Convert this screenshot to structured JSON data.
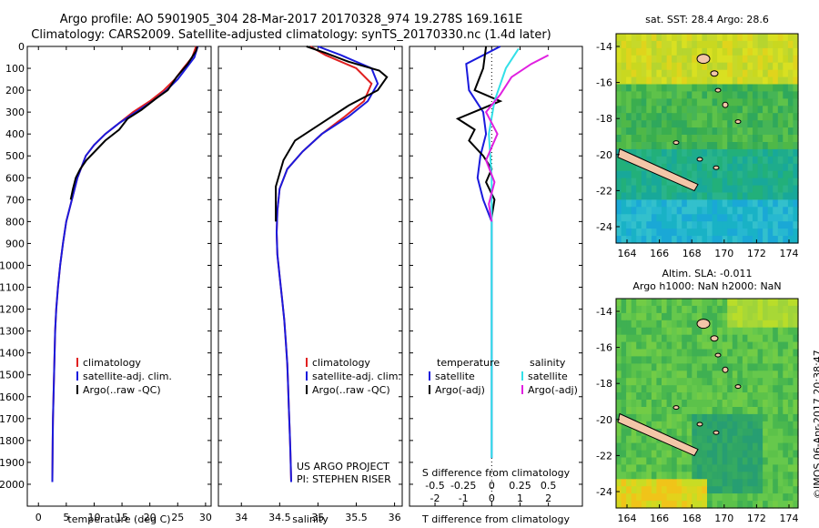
{
  "header": {
    "line1": "Argo profile: AO 5901905_304 28-Mar-2017 20170328_974 19.278S 169.161E",
    "line2": "Climatology: CARS2009. Satellite-adjusted climatology: synTS_20170330.nc (1.4d later)"
  },
  "credit": "©IMOS 06-Apr-2017 20:38:47",
  "colors": {
    "climatology": "#e02020",
    "satellite": "#1a1add",
    "argo": "#000000",
    "sat_salinity": "#33e0e8",
    "argo_salinity": "#e020e0"
  },
  "chart_data": [
    {
      "type": "line",
      "xlabel": "temperature (deg C)",
      "ylabel": "",
      "xlim": [
        -2,
        31
      ],
      "ylim": [
        2100,
        0
      ],
      "xticks": [
        0,
        5,
        10,
        15,
        20,
        25,
        30
      ],
      "yticks": [
        0,
        100,
        200,
        300,
        400,
        500,
        600,
        700,
        800,
        900,
        1000,
        1100,
        1200,
        1300,
        1400,
        1500,
        1600,
        1700,
        1800,
        1900,
        2000
      ],
      "legend": [
        "climatology",
        "satellite-adj. clim.",
        "Argo(..raw -QC)"
      ],
      "series": [
        {
          "name": "climatology",
          "color": "#e02020",
          "x": [
            28.3,
            27.6,
            26,
            24.5,
            22.5,
            20,
            17,
            14.5,
            12,
            10,
            8.5,
            7,
            6,
            5,
            4.4,
            3.9,
            3.5,
            3.2,
            3,
            2.9,
            2.8,
            2.7,
            2.6,
            2.55,
            2.5
          ],
          "y": [
            0,
            50,
            100,
            150,
            200,
            250,
            300,
            350,
            400,
            450,
            500,
            600,
            700,
            800,
            900,
            1000,
            1100,
            1200,
            1300,
            1400,
            1500,
            1600,
            1700,
            1800,
            1990
          ]
        },
        {
          "name": "satellite-adj. clim.",
          "color": "#1a1add",
          "x": [
            28.6,
            28,
            26.5,
            25,
            23,
            20.5,
            17.5,
            14.5,
            12,
            10,
            8.5,
            7,
            6,
            5,
            4.4,
            3.9,
            3.5,
            3.2,
            3,
            2.9,
            2.8,
            2.7,
            2.6,
            2.55,
            2.5
          ],
          "y": [
            0,
            50,
            100,
            150,
            200,
            250,
            300,
            350,
            400,
            450,
            500,
            600,
            700,
            800,
            900,
            1000,
            1100,
            1200,
            1300,
            1400,
            1500,
            1600,
            1700,
            1800,
            1990
          ]
        },
        {
          "name": "Argo(..raw -QC)",
          "color": "#000000",
          "x": [
            28.5,
            28.3,
            26.8,
            24.8,
            23.2,
            21,
            18.5,
            16,
            14.5,
            12,
            10.5,
            8.6,
            7.5,
            6.7,
            6.2,
            5.8
          ],
          "y": [
            0,
            20,
            80,
            140,
            200,
            240,
            290,
            330,
            380,
            430,
            470,
            520,
            560,
            600,
            650,
            700
          ]
        }
      ]
    },
    {
      "type": "line",
      "xlabel": "salinity",
      "ylabel": "",
      "xlim": [
        33.7,
        36.1
      ],
      "ylim": [
        2100,
        0
      ],
      "xticks": [
        34,
        34.5,
        35,
        35.5,
        36
      ],
      "xtick_labels": [
        "34",
        "34.5",
        "35",
        "35.5",
        "36"
      ],
      "legend": [
        "climatology",
        "satellite-adj. clim.",
        "Argo(..raw -QC)"
      ],
      "annotations": [
        "US ARGO PROJECT",
        "PI: STEPHEN RISER"
      ],
      "series": [
        {
          "name": "climatology",
          "color": "#e02020",
          "x": [
            34.9,
            35.1,
            35.5,
            35.7,
            35.6,
            35.35,
            35.05,
            34.8,
            34.6,
            34.5,
            34.47,
            34.46,
            34.47,
            34.5,
            34.53,
            34.56,
            34.58,
            34.6,
            34.61,
            34.62,
            34.63,
            34.64,
            34.65
          ],
          "y": [
            0,
            40,
            100,
            170,
            250,
            320,
            400,
            480,
            560,
            650,
            750,
            850,
            950,
            1050,
            1150,
            1250,
            1350,
            1450,
            1550,
            1650,
            1750,
            1850,
            1990
          ]
        },
        {
          "name": "satellite-adj. clim.",
          "color": "#1a1add",
          "x": [
            35,
            35.3,
            35.7,
            35.78,
            35.65,
            35.4,
            35.05,
            34.8,
            34.6,
            34.5,
            34.47,
            34.46,
            34.47,
            34.5,
            34.53,
            34.56,
            34.58,
            34.6,
            34.61,
            34.62,
            34.63,
            34.64,
            34.65
          ],
          "y": [
            0,
            40,
            100,
            170,
            250,
            320,
            400,
            480,
            560,
            650,
            750,
            850,
            950,
            1050,
            1150,
            1250,
            1350,
            1450,
            1550,
            1650,
            1750,
            1850,
            1990
          ]
        },
        {
          "name": "Argo(..raw -QC)",
          "color": "#000000",
          "x": [
            34.85,
            35.1,
            35.4,
            35.8,
            35.9,
            35.78,
            35.4,
            35.05,
            34.7,
            34.55,
            34.45,
            34.45
          ],
          "y": [
            0,
            30,
            70,
            110,
            140,
            200,
            270,
            350,
            430,
            520,
            640,
            800
          ]
        }
      ]
    },
    {
      "type": "line",
      "xlabel": "T difference from climatology",
      "xlabel2": "S difference from climatology",
      "ylabel": "",
      "xlim": [
        -2.9,
        3.2
      ],
      "ylim": [
        2100,
        0
      ],
      "xticks": [
        -2,
        -1,
        0,
        1,
        2
      ],
      "xticks2": [
        -0.5,
        -0.25,
        0,
        0.25,
        0.5
      ],
      "xtick2_labels": [
        "-0.5",
        "-0.25",
        "0",
        "0.25",
        "0.5"
      ],
      "legend": [
        "temperature",
        "satellite",
        "Argo(-adj)",
        "salinity",
        "satellite",
        "Argo(-adj)"
      ],
      "series": [
        {
          "name": "satellite",
          "color": "#1a1add",
          "x": [
            0.3,
            -0.9,
            -0.8,
            -0.3,
            -0.2,
            -0.4,
            -0.5,
            -0.3,
            0,
            0,
            0
          ],
          "y": [
            0,
            80,
            200,
            300,
            400,
            500,
            600,
            700,
            800,
            1200,
            1880
          ]
        },
        {
          "name": "Argo(-adj)",
          "color": "#000000",
          "x": [
            -0.2,
            -0.3,
            -0.6,
            0.3,
            -1.2,
            -0.6,
            -0.8,
            -0.3,
            0,
            -0.2,
            0.1,
            0
          ],
          "y": [
            0,
            100,
            200,
            250,
            330,
            380,
            430,
            500,
            560,
            620,
            700,
            780
          ]
        },
        {
          "name": "satellite",
          "color": "#33e0e8",
          "x": [
            0.95,
            0.5,
            0.1,
            -0.1,
            0,
            0,
            0
          ],
          "y": [
            10,
            100,
            250,
            400,
            600,
            800,
            1880
          ]
        },
        {
          "name": "Argo(-adj)",
          "color": "#e020e0",
          "x": [
            2,
            1.4,
            0.7,
            0.3,
            -0.2,
            0.2,
            -0.2,
            0.1,
            -0.1,
            0
          ],
          "y": [
            40,
            80,
            140,
            220,
            300,
            400,
            520,
            620,
            720,
            800
          ]
        }
      ]
    }
  ],
  "maps": [
    {
      "title": "sat. SST: 28.4 Argo: 28.6",
      "xticks": [
        "164",
        "166",
        "168",
        "170",
        "172",
        "174"
      ],
      "yticks": [
        "-14",
        "-16",
        "-18",
        "-20",
        "-22",
        "-24"
      ]
    },
    {
      "title1": "Altim. SLA: -0.011",
      "title2": "Argo h1000: NaN h2000: NaN",
      "xticks": [
        "164",
        "166",
        "168",
        "170",
        "172",
        "174"
      ],
      "yticks": [
        "-14",
        "-16",
        "-18",
        "-20",
        "-22",
        "-24"
      ]
    }
  ]
}
